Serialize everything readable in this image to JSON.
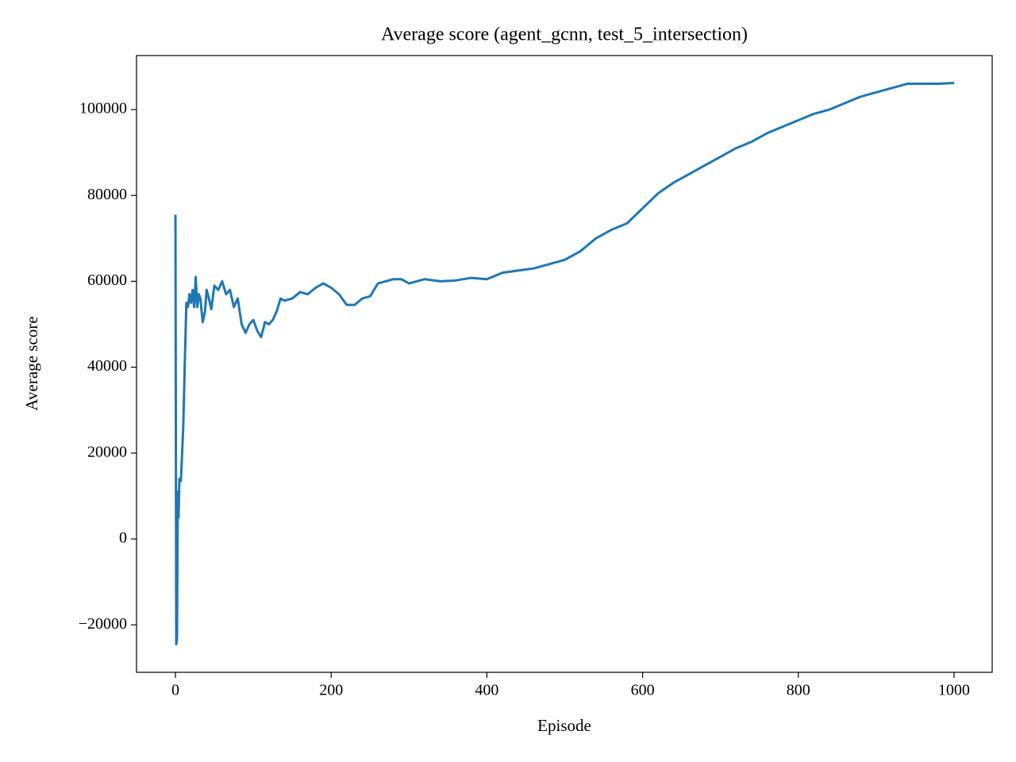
{
  "chart_data": {
    "type": "line",
    "title": "Average score (agent_gcnn, test_5_intersection)",
    "x_label": "Episode",
    "y_label": "Average score",
    "xlim": [
      -50,
      1049
    ],
    "ylim": [
      -31050,
      112570
    ],
    "xticks": [
      0,
      200,
      400,
      600,
      800,
      1000
    ],
    "yticks": [
      {
        "value": -20000,
        "label": "−20000"
      },
      0,
      20000,
      40000,
      60000,
      80000,
      100000
    ],
    "grid": false,
    "series": [
      {
        "name": "Average score",
        "color": "#1f77b4",
        "x": [
          0,
          1,
          2,
          3,
          4,
          5,
          7,
          10,
          12,
          14,
          16,
          18,
          20,
          22,
          24,
          26,
          28,
          30,
          32,
          35,
          38,
          40,
          43,
          46,
          50,
          55,
          60,
          65,
          70,
          75,
          80,
          85,
          90,
          95,
          100,
          105,
          110,
          115,
          120,
          125,
          130,
          135,
          140,
          150,
          160,
          170,
          180,
          190,
          200,
          210,
          220,
          230,
          240,
          250,
          260,
          270,
          280,
          290,
          300,
          320,
          340,
          360,
          380,
          400,
          420,
          440,
          460,
          480,
          500,
          520,
          540,
          560,
          580,
          600,
          620,
          640,
          660,
          680,
          700,
          720,
          740,
          760,
          780,
          800,
          820,
          840,
          860,
          880,
          900,
          920,
          940,
          960,
          980,
          1000
        ],
        "values": [
          75500,
          -24500,
          -23000,
          11000,
          5000,
          14000,
          13500,
          26000,
          41000,
          55000,
          54000,
          57000,
          55000,
          58000,
          54000,
          61000,
          54000,
          57000,
          56000,
          50500,
          53000,
          58000,
          56000,
          53500,
          59000,
          58000,
          60000,
          57000,
          58000,
          54000,
          56000,
          50000,
          48000,
          50000,
          51000,
          48500,
          47000,
          50500,
          50000,
          51000,
          53000,
          56000,
          55500,
          56000,
          57500,
          57000,
          58500,
          59500,
          58500,
          57000,
          54500,
          54500,
          56000,
          56500,
          59500,
          60000,
          60500,
          60500,
          59500,
          60500,
          60000,
          60200,
          60800,
          60500,
          62000,
          62500,
          63000,
          64000,
          65000,
          67000,
          70000,
          72000,
          73500,
          77000,
          80500,
          83000,
          85000,
          87000,
          89000,
          91000,
          92500,
          94500,
          96000,
          97500,
          99000,
          100000,
          101500,
          103000,
          104000,
          105000,
          106000,
          106000,
          106000,
          106200
        ]
      }
    ]
  }
}
